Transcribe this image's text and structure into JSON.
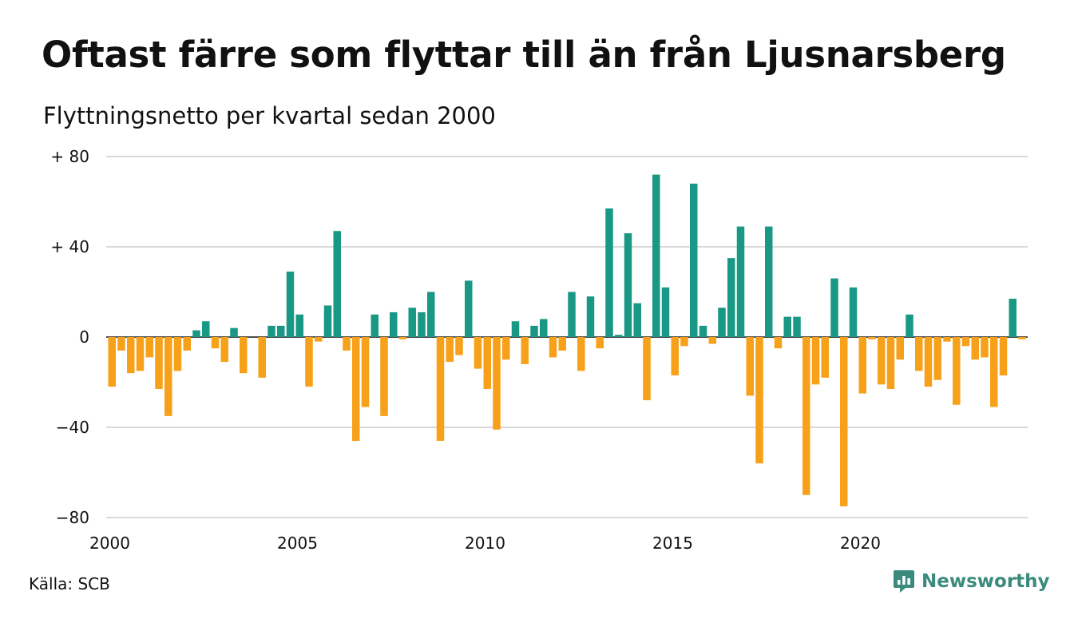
{
  "title": "Oftast färre som flyttar till än från Ljusnarsberg",
  "subtitle": "Flyttningsnetto per kvartal sedan 2000",
  "source": "Källa: SCB",
  "brand": {
    "name": "Newsworthy",
    "icon": "newsworthy-logo-icon",
    "color": "#3a8a7e"
  },
  "colors": {
    "positive": "#1a9886",
    "negative": "#f7a11a",
    "grid": "#d9d9d9",
    "axis": "#111111"
  },
  "chart_data": {
    "type": "bar",
    "title": "Oftast färre som flyttar till än från Ljusnarsberg",
    "subtitle": "Flyttningsnetto per kvartal sedan 2000",
    "xlabel": "",
    "ylabel": "",
    "x_start": "2000 Q1",
    "x_ticks": [
      "2000",
      "2005",
      "2010",
      "2015",
      "2020"
    ],
    "y_ticks": [
      {
        "value": 80,
        "label": "+ 80"
      },
      {
        "value": 40,
        "label": "+ 40"
      },
      {
        "value": 0,
        "label": "0"
      },
      {
        "value": -40,
        "label": "−40"
      },
      {
        "value": -80,
        "label": "−80"
      }
    ],
    "ylim": [
      -80,
      80
    ],
    "grid": true,
    "legend": "none",
    "values": [
      -22,
      -6,
      -16,
      -15,
      -9,
      -23,
      -35,
      -15,
      -6,
      3,
      7,
      -5,
      -11,
      4,
      -16,
      0,
      -18,
      5,
      5,
      29,
      10,
      -22,
      -2,
      14,
      47,
      -6,
      -46,
      -31,
      10,
      -35,
      11,
      -1,
      13,
      11,
      20,
      -46,
      -11,
      -8,
      25,
      -14,
      -23,
      -41,
      -10,
      7,
      -12,
      5,
      8,
      -9,
      -6,
      20,
      -15,
      18,
      -5,
      57,
      1,
      46,
      15,
      -28,
      72,
      22,
      -17,
      -4,
      68,
      5,
      -3,
      13,
      35,
      49,
      -26,
      -56,
      49,
      -5,
      9,
      9,
      -70,
      -21,
      -18,
      26,
      -75,
      22,
      -25,
      -1,
      -21,
      -23,
      -10,
      10,
      -15,
      -22,
      -19,
      -2,
      -30,
      -4,
      -10,
      -9,
      -31,
      -17,
      17,
      -1
    ]
  }
}
